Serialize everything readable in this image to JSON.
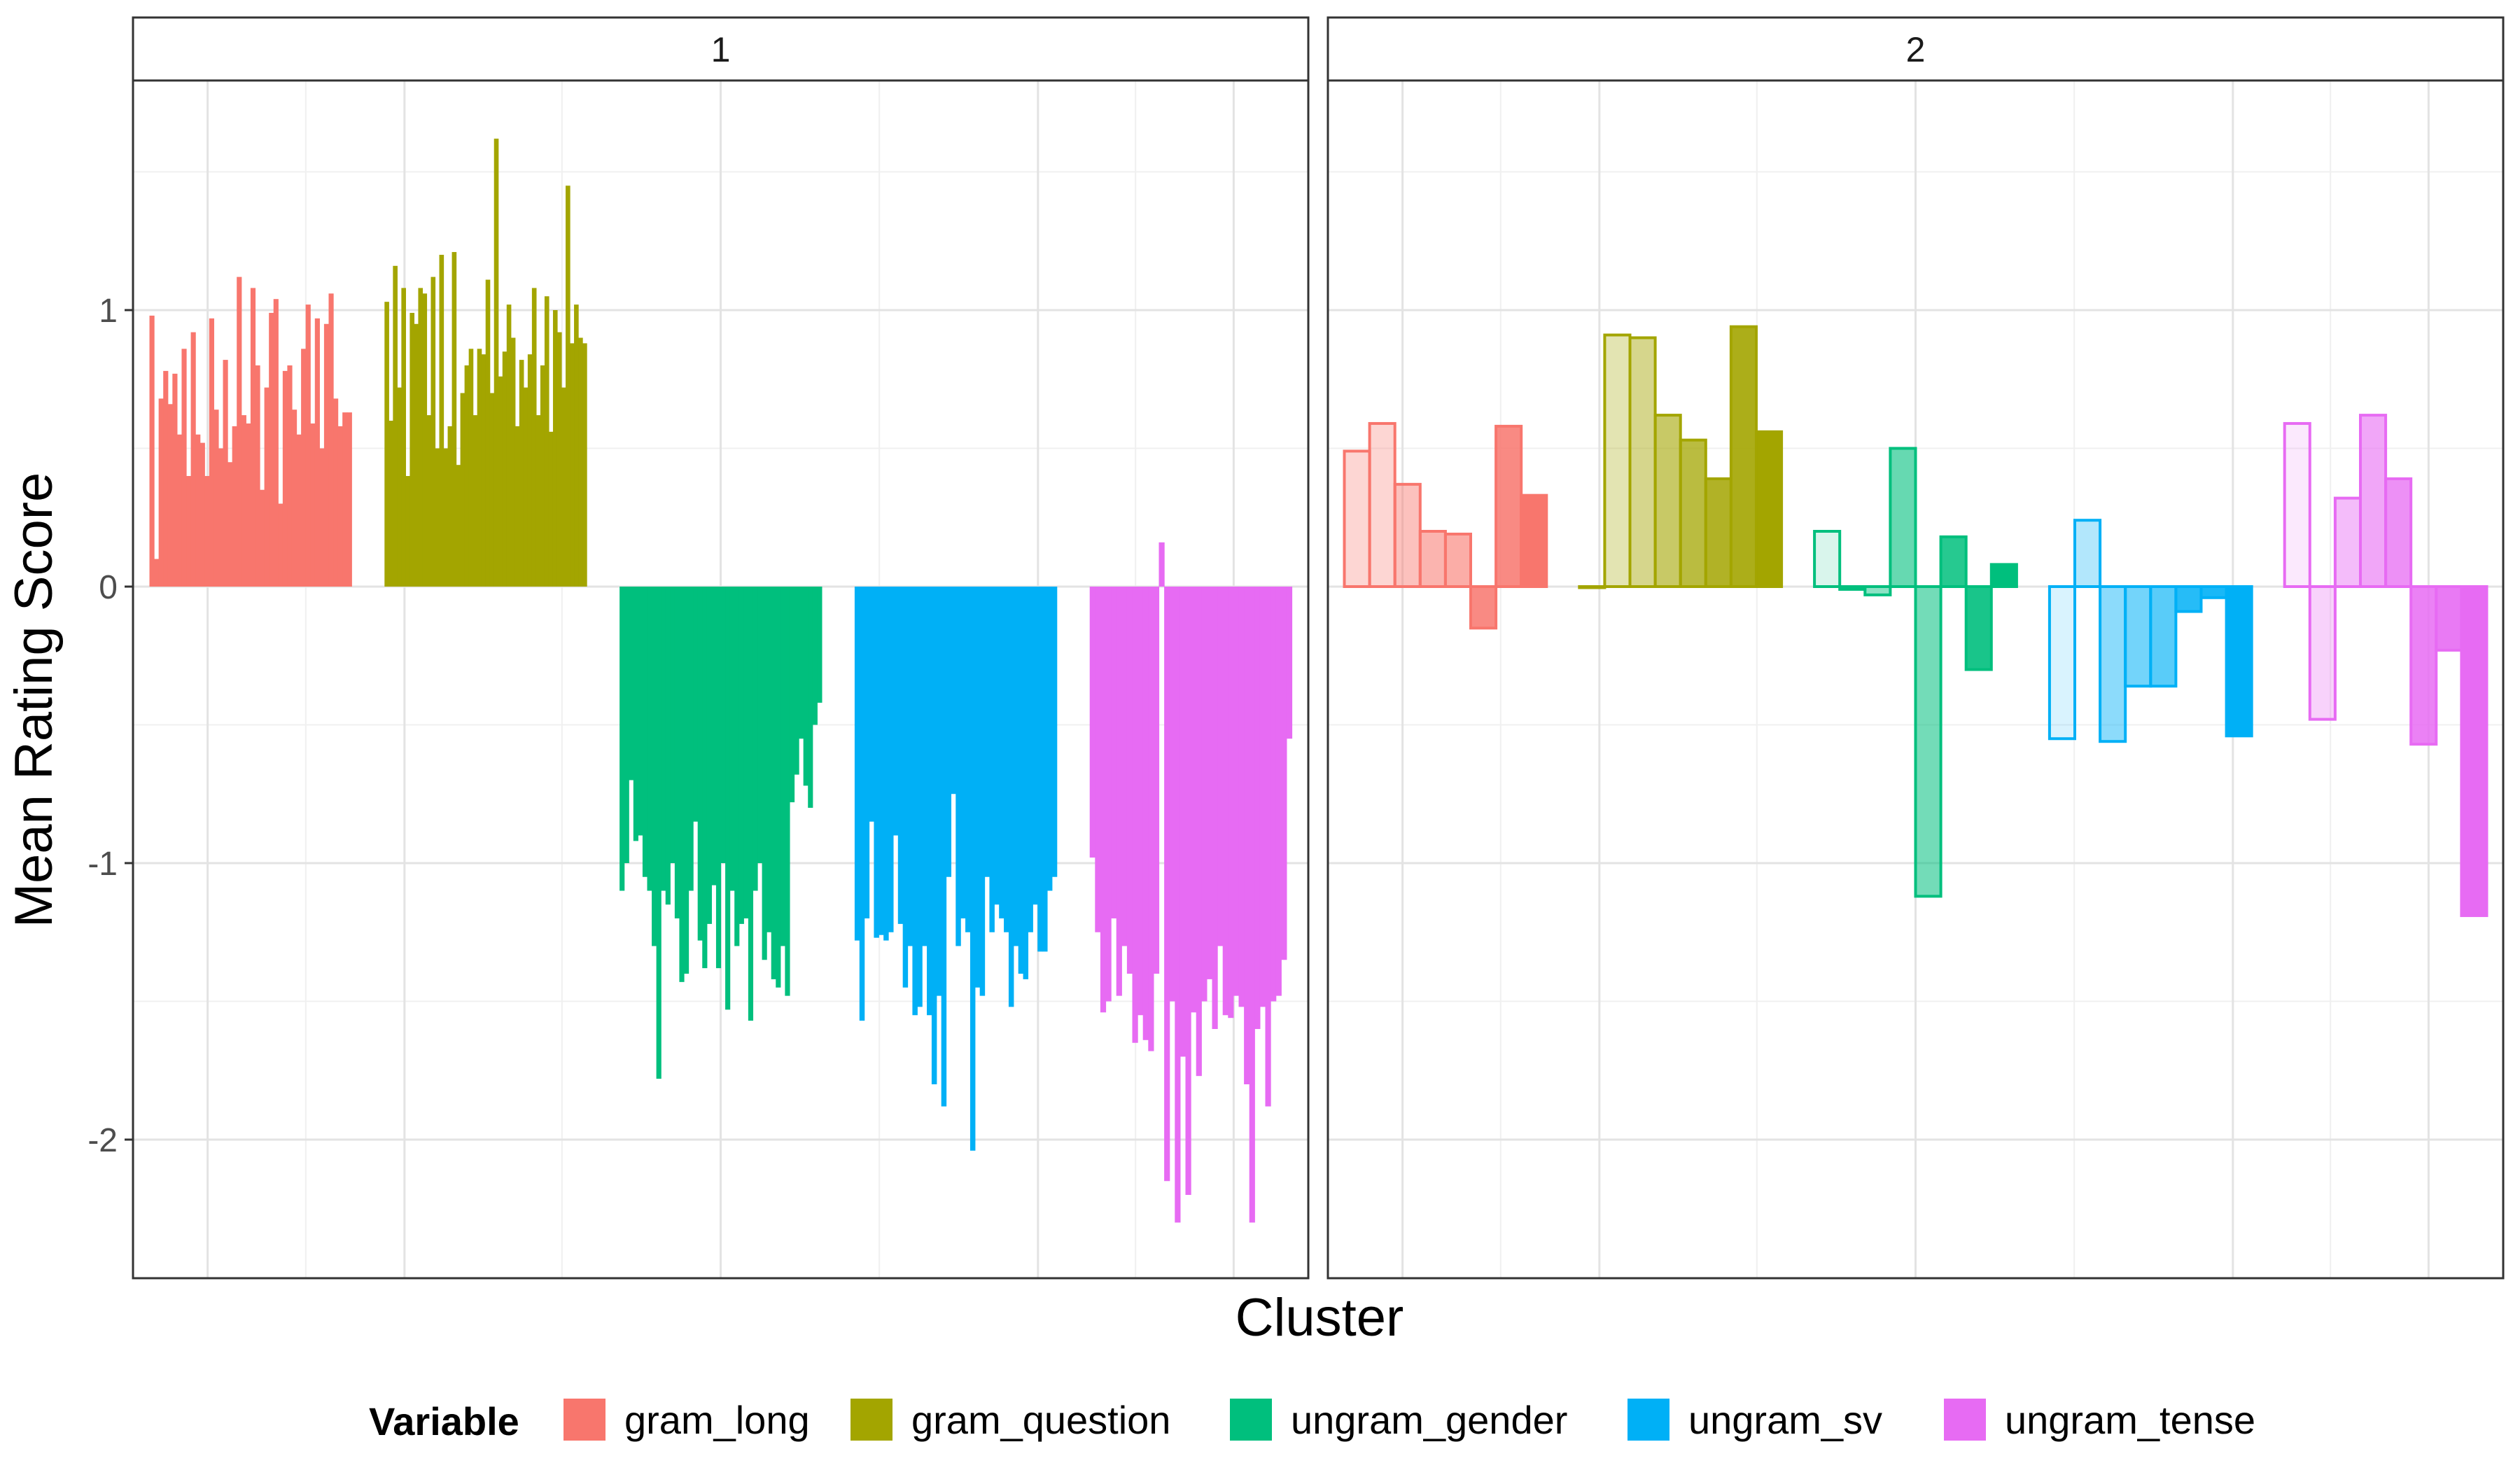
{
  "chart_data": {
    "type": "bar",
    "xlabel": "Cluster",
    "ylabel": "Mean Rating Score",
    "ylim": [
      -2.5,
      1.85
    ],
    "y_ticks": [
      1,
      0,
      -1,
      -2
    ],
    "y_tick_labels": [
      "1",
      "0",
      "-1",
      "-2"
    ],
    "grid": true,
    "legend": {
      "title": "Variable",
      "position": "bottom",
      "items": [
        {
          "name": "gram_long",
          "color": "#F8766D"
        },
        {
          "name": "gram_question",
          "color": "#A3A500"
        },
        {
          "name": "ungram_gender",
          "color": "#00BF7D"
        },
        {
          "name": "ungram_sv",
          "color": "#00B0F6"
        },
        {
          "name": "ungram_tense",
          "color": "#E76BF3"
        }
      ]
    },
    "panels": [
      {
        "label": "1",
        "series": [
          {
            "name": "gram_long",
            "values": [
              0.98,
              0.1,
              0.68,
              0.78,
              0.66,
              0.77,
              0.55,
              0.86,
              0.4,
              0.92,
              0.55,
              0.52,
              0.4,
              0.97,
              0.64,
              0.5,
              0.82,
              0.45,
              0.58,
              1.12,
              0.62,
              0.59,
              1.08,
              0.8,
              0.35,
              0.72,
              0.99,
              1.04,
              0.3,
              0.78,
              0.8,
              0.64,
              0.55,
              0.86,
              1.02,
              0.59,
              0.97,
              0.5,
              0.95,
              1.06,
              0.68,
              0.58,
              0.63,
              0.63
            ]
          },
          {
            "name": "gram_question",
            "values": [
              1.03,
              0.6,
              1.16,
              0.72,
              1.08,
              0.4,
              0.99,
              0.95,
              1.08,
              1.06,
              0.62,
              1.12,
              0.5,
              1.2,
              0.5,
              0.58,
              1.21,
              0.44,
              0.7,
              0.8,
              0.86,
              0.62,
              0.86,
              0.84,
              1.11,
              0.7,
              1.62,
              0.76,
              0.85,
              1.02,
              0.9,
              0.58,
              0.82,
              0.72,
              0.84,
              1.08,
              0.62,
              0.8,
              1.05,
              0.56,
              1.0,
              0.92,
              0.72,
              1.45,
              0.88,
              1.02,
              0.9,
              0.88
            ]
          },
          {
            "name": "ungram_gender",
            "values": [
              -1.1,
              -1.0,
              -0.7,
              -0.92,
              -0.9,
              -1.05,
              -1.1,
              -1.3,
              -1.78,
              -1.1,
              -1.15,
              -1.0,
              -1.2,
              -1.43,
              -1.4,
              -1.1,
              -0.85,
              -1.28,
              -1.38,
              -1.22,
              -1.08,
              -1.38,
              -1.0,
              -1.53,
              -1.1,
              -1.3,
              -1.22,
              -1.2,
              -1.57,
              -1.1,
              -1.0,
              -1.35,
              -1.25,
              -1.42,
              -1.45,
              -1.3,
              -1.48,
              -0.78,
              -0.68,
              -0.55,
              -0.72,
              -0.8,
              -0.5,
              -0.42
            ]
          },
          {
            "name": "ungram_sv",
            "values": [
              -1.28,
              -1.57,
              -1.2,
              -0.85,
              -1.27,
              -1.26,
              -1.28,
              -1.25,
              -0.9,
              -1.22,
              -1.45,
              -1.3,
              -1.55,
              -1.52,
              -1.3,
              -1.55,
              -1.8,
              -1.48,
              -1.88,
              -1.05,
              -0.75,
              -1.3,
              -1.2,
              -1.25,
              -2.04,
              -1.45,
              -1.48,
              -1.05,
              -1.25,
              -1.15,
              -1.2,
              -1.25,
              -1.52,
              -1.3,
              -1.4,
              -1.42,
              -1.25,
              -1.15,
              -1.32,
              -1.32,
              -1.1,
              -1.05
            ]
          },
          {
            "name": "ungram_tense",
            "values": [
              -0.98,
              -1.25,
              -1.54,
              -1.5,
              -1.2,
              -1.48,
              -1.3,
              -1.4,
              -1.65,
              -1.55,
              -1.64,
              -1.68,
              -1.4,
              0.16,
              -2.15,
              -1.5,
              -2.3,
              -1.7,
              -2.2,
              -1.54,
              -1.77,
              -1.5,
              -1.42,
              -1.6,
              -1.3,
              -1.55,
              -1.56,
              -1.48,
              -1.52,
              -1.8,
              -2.3,
              -1.6,
              -1.52,
              -1.88,
              -1.5,
              -1.48,
              -1.35,
              -0.55
            ]
          }
        ]
      },
      {
        "label": "2",
        "series": [
          {
            "name": "gram_long",
            "values": [
              0.49,
              0.59,
              0.37,
              0.2,
              0.19,
              -0.15,
              0.58,
              0.33
            ],
            "alphas": [
              0.3,
              0.3,
              0.45,
              0.55,
              0.6,
              0.85,
              0.85,
              1.0
            ]
          },
          {
            "name": "gram_question",
            "values": [
              0.0,
              0.91,
              0.9,
              0.62,
              0.53,
              0.39,
              0.94,
              0.56
            ],
            "alphas": [
              0.2,
              0.3,
              0.45,
              0.6,
              0.75,
              0.85,
              0.9,
              1.0
            ]
          },
          {
            "name": "ungram_gender",
            "values": [
              0.2,
              -0.01,
              -0.03,
              0.5,
              -1.12,
              0.18,
              -0.3,
              0.08
            ],
            "alphas": [
              0.15,
              0.3,
              0.45,
              0.6,
              0.55,
              0.85,
              0.9,
              1.0
            ]
          },
          {
            "name": "ungram_sv",
            "values": [
              -0.55,
              0.24,
              -0.56,
              -0.36,
              -0.36,
              -0.09,
              -0.04,
              -0.54
            ],
            "alphas": [
              0.15,
              0.3,
              0.45,
              0.55,
              0.65,
              0.85,
              0.9,
              1.0
            ]
          },
          {
            "name": "ungram_tense",
            "values": [
              0.59,
              -0.48,
              0.32,
              0.62,
              0.39,
              -0.57,
              -0.23,
              -1.19
            ],
            "alphas": [
              0.15,
              0.3,
              0.45,
              0.6,
              0.75,
              0.85,
              0.9,
              1.0
            ]
          }
        ]
      }
    ]
  }
}
